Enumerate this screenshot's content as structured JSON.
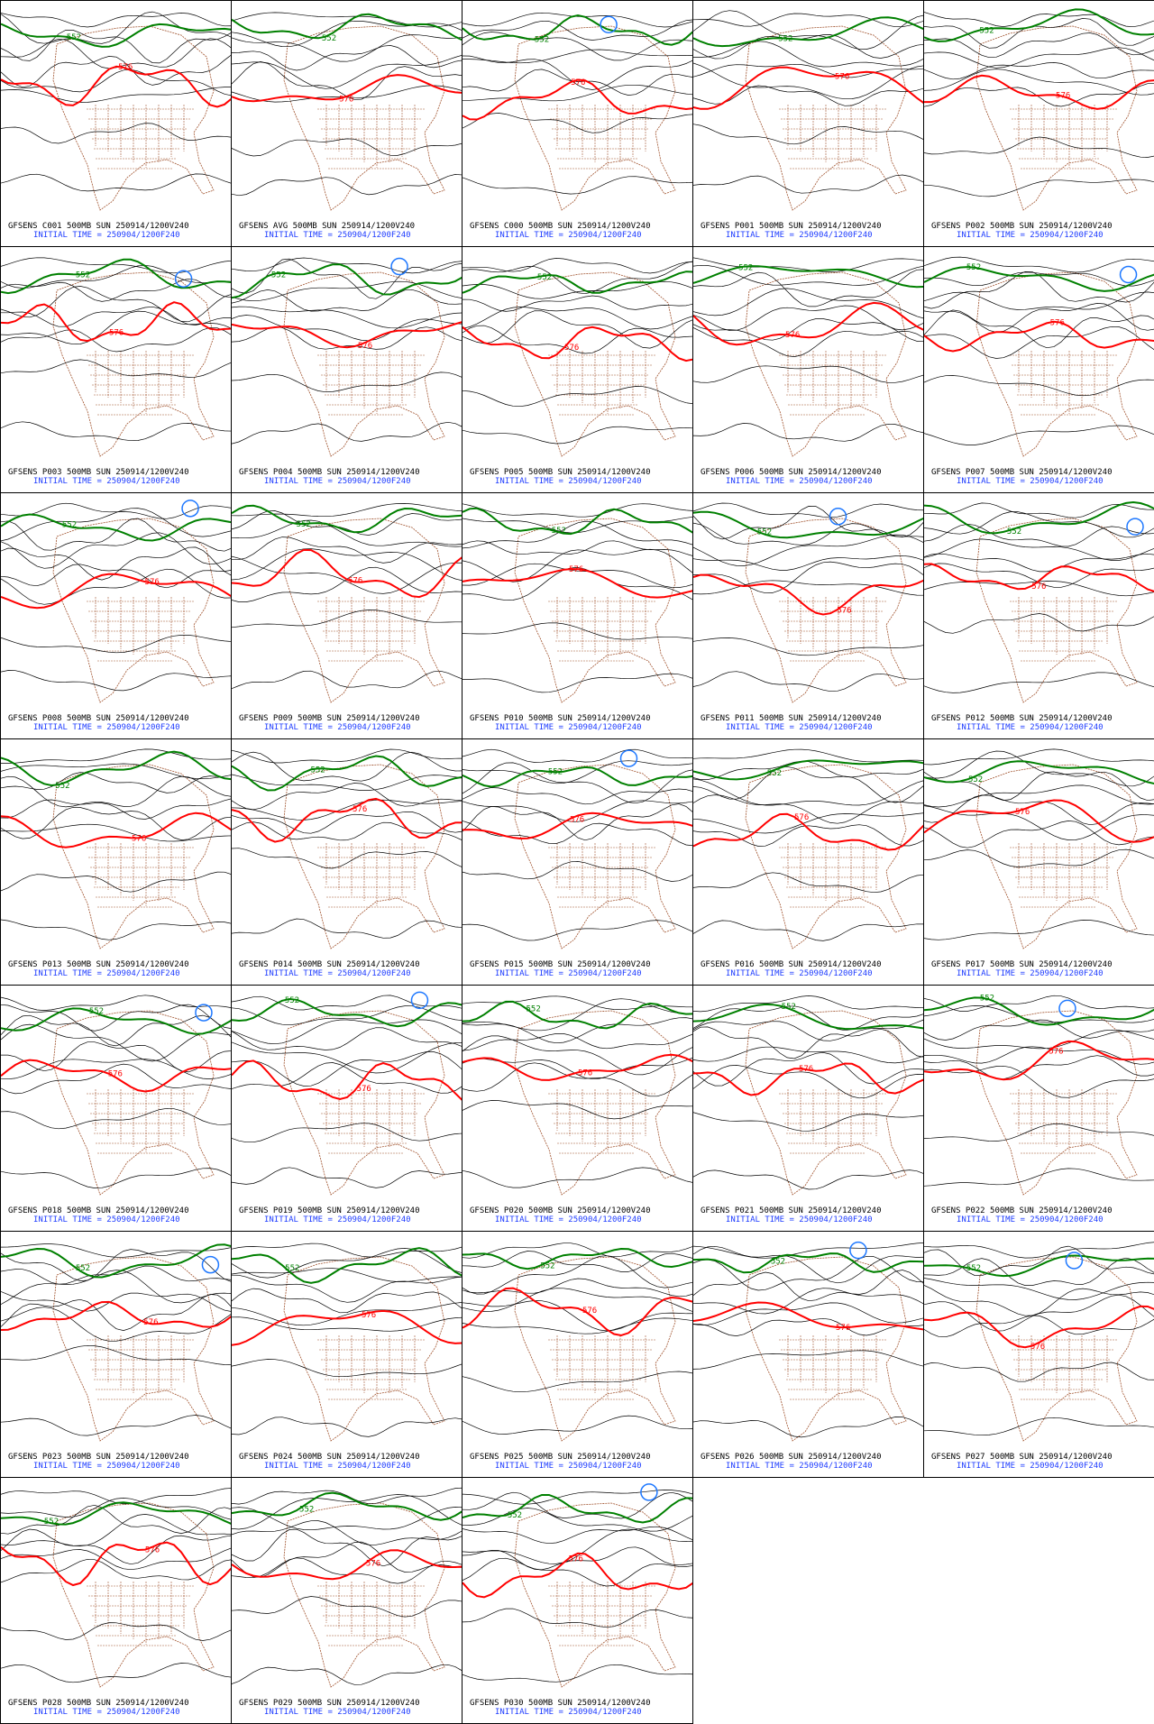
{
  "panels": [
    {
      "caption": "GFSENS C001 500MB SUN 250914/1200V240",
      "init": "INITIAL TIME = 250904/1200F240",
      "contours": [
        "576",
        "552"
      ]
    },
    {
      "caption": "GFSENS AVG 500MB SUN 250914/1200V240",
      "init": "INITIAL TIME = 250904/1200F240",
      "contours": [
        "576",
        "552"
      ]
    },
    {
      "caption": "GFSENS C000 500MB SUN 250914/1200V240",
      "init": "INITIAL TIME = 250904/1200F240",
      "contours": [
        "576",
        "552"
      ]
    },
    {
      "caption": "GFSENS P001 500MB SUN 250914/1200V240",
      "init": "INITIAL TIME = 250904/1200F240",
      "contours": [
        "576",
        "552"
      ]
    },
    {
      "caption": "GFSENS P002 500MB SUN 250914/1200V240",
      "init": "INITIAL TIME = 250904/1200F240",
      "contours": [
        "576",
        "552"
      ]
    },
    {
      "caption": "GFSENS P003 500MB SUN 250914/1200V240",
      "init": "INITIAL TIME = 250904/1200F240",
      "contours": [
        "576",
        "552"
      ]
    },
    {
      "caption": "GFSENS P004 500MB SUN 250914/1200V240",
      "init": "INITIAL TIME = 250904/1200F240",
      "contours": [
        "576",
        "552"
      ]
    },
    {
      "caption": "GFSENS P005 500MB SUN 250914/1200V240",
      "init": "INITIAL TIME = 250904/1200F240",
      "contours": [
        "576",
        "552"
      ]
    },
    {
      "caption": "GFSENS P006 500MB SUN 250914/1200V240",
      "init": "INITIAL TIME = 250904/1200F240",
      "contours": [
        "576",
        "552"
      ]
    },
    {
      "caption": "GFSENS P007 500MB SUN 250914/1200V240",
      "init": "INITIAL TIME = 250904/1200F240",
      "contours": [
        "576",
        "552"
      ]
    },
    {
      "caption": "GFSENS P008 500MB SUN 250914/1200V240",
      "init": "INITIAL TIME = 250904/1200F240",
      "contours": [
        "576",
        "552"
      ]
    },
    {
      "caption": "GFSENS P009 500MB SUN 250914/1200V240",
      "init": "INITIAL TIME = 250904/1200F240",
      "contours": [
        "576",
        "552"
      ]
    },
    {
      "caption": "GFSENS P010 500MB SUN 250914/1200V240",
      "init": "INITIAL TIME = 250904/1200F240",
      "contours": [
        "576",
        "552"
      ]
    },
    {
      "caption": "GFSENS P011 500MB SUN 250914/1200V240",
      "init": "INITIAL TIME = 250904/1200F240",
      "contours": [
        "576",
        "552"
      ]
    },
    {
      "caption": "GFSENS P012 500MB SUN 250914/1200V240",
      "init": "INITIAL TIME = 250904/1200F240",
      "contours": [
        "576",
        "552"
      ]
    },
    {
      "caption": "GFSENS P013 500MB SUN 250914/1200V240",
      "init": "INITIAL TIME = 250904/1200F240",
      "contours": [
        "576",
        "552"
      ]
    },
    {
      "caption": "GFSENS P014 500MB SUN 250914/1200V240",
      "init": "INITIAL TIME = 250904/1200F240",
      "contours": [
        "576",
        "552"
      ]
    },
    {
      "caption": "GFSENS P015 500MB SUN 250914/1200V240",
      "init": "INITIAL TIME = 250904/1200F240",
      "contours": [
        "576",
        "552"
      ]
    },
    {
      "caption": "GFSENS P016 500MB SUN 250914/1200V240",
      "init": "INITIAL TIME = 250904/1200F240",
      "contours": [
        "576",
        "552"
      ]
    },
    {
      "caption": "GFSENS P017 500MB SUN 250914/1200V240",
      "init": "INITIAL TIME = 250904/1200F240",
      "contours": [
        "576",
        "552"
      ]
    },
    {
      "caption": "GFSENS P018 500MB SUN 250914/1200V240",
      "init": "INITIAL TIME = 250904/1200F240",
      "contours": [
        "576",
        "552"
      ]
    },
    {
      "caption": "GFSENS P019 500MB SUN 250914/1200V240",
      "init": "INITIAL TIME = 250904/1200F240",
      "contours": [
        "576",
        "552"
      ]
    },
    {
      "caption": "GFSENS P020 500MB SUN 250914/1200V240",
      "init": "INITIAL TIME = 250904/1200F240",
      "contours": [
        "576",
        "552"
      ]
    },
    {
      "caption": "GFSENS P021 500MB SUN 250914/1200V240",
      "init": "INITIAL TIME = 250904/1200F240",
      "contours": [
        "576",
        "552"
      ]
    },
    {
      "caption": "GFSENS P022 500MB SUN 250914/1200V240",
      "init": "INITIAL TIME = 250904/1200F240",
      "contours": [
        "576",
        "552"
      ]
    },
    {
      "caption": "GFSENS P023 500MB SUN 250914/1200V240",
      "init": "INITIAL TIME = 250904/1200F240",
      "contours": [
        "576",
        "552"
      ]
    },
    {
      "caption": "GFSENS P024 500MB SUN 250914/1200V240",
      "init": "INITIAL TIME = 250904/1200F240",
      "contours": [
        "576",
        "552"
      ]
    },
    {
      "caption": "GFSENS P025 500MB SUN 250914/1200V240",
      "init": "INITIAL TIME = 250904/1200F240",
      "contours": [
        "576",
        "552"
      ]
    },
    {
      "caption": "GFSENS P026 500MB SUN 250914/1200V240",
      "init": "INITIAL TIME = 250904/1200F240",
      "contours": [
        "576",
        "552"
      ]
    },
    {
      "caption": "GFSENS P027 500MB SUN 250914/1200V240",
      "init": "INITIAL TIME = 250904/1200F240",
      "contours": [
        "576",
        "552"
      ]
    },
    {
      "caption": "GFSENS P028 500MB SUN 250914/1200V240",
      "init": "INITIAL TIME = 250904/1200F240",
      "contours": [
        "576",
        "552"
      ]
    },
    {
      "caption": "GFSENS P029 500MB SUN 250914/1200V240",
      "init": "INITIAL TIME = 250904/1200F240",
      "contours": [
        "576",
        "552"
      ]
    },
    {
      "caption": "GFSENS P030 500MB SUN 250914/1200V240",
      "init": "INITIAL TIME = 250904/1200F240",
      "contours": [
        "576",
        "552"
      ]
    }
  ]
}
